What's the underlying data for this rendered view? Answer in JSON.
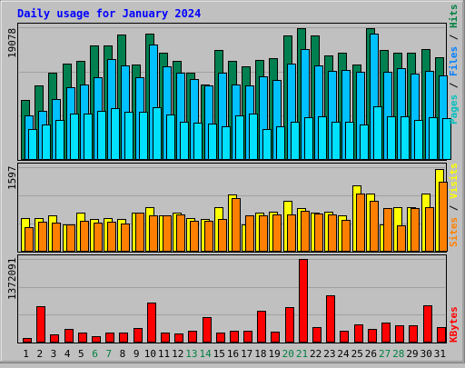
{
  "chart_data": {
    "type": "bar",
    "title": "Daily usage for January 2024",
    "categories": [
      "1",
      "2",
      "3",
      "4",
      "5",
      "6",
      "7",
      "8",
      "9",
      "10",
      "11",
      "12",
      "13",
      "14",
      "15",
      "16",
      "17",
      "18",
      "19",
      "20",
      "21",
      "22",
      "23",
      "24",
      "25",
      "26",
      "27",
      "28",
      "29",
      "30",
      "31"
    ],
    "weekend_days": [
      "6",
      "7",
      "13",
      "14",
      "20",
      "21",
      "27",
      "28"
    ],
    "colors": {
      "title": "#0000ff",
      "background": "#c0c0c0",
      "plot_background": "#c0c0c0",
      "grid": "#a0a0a0",
      "weekday_label": "#000000",
      "weekend_label": "#008040",
      "separator": "#000000"
    },
    "panels": [
      {
        "id": "pages-files-hits",
        "ymax_label": "19078",
        "ylim": [
          0,
          19078
        ],
        "legend": [
          {
            "text": "Pages",
            "color": "#00c0c0"
          },
          {
            "text": " / ",
            "color": "#000000"
          },
          {
            "text": "Files",
            "color": "#0080ff"
          },
          {
            "text": " / ",
            "color": "#000000"
          },
          {
            "text": "Hits",
            "color": "#008040"
          }
        ],
        "series": [
          {
            "name": "Hits",
            "color": "#008050",
            "values": [
              8600,
              10700,
              12600,
              13900,
              14300,
              16400,
              16400,
              18000,
              13700,
              18200,
              15400,
              14300,
              12500,
              10900,
              15800,
              14300,
              13500,
              14400,
              14600,
              17900,
              19000,
              17900,
              15000,
              15400,
              13700,
              19000,
              15800,
              15400,
              15400,
              15900,
              14800
            ]
          },
          {
            "name": "Files",
            "color": "#00c0ff",
            "values": [
              6400,
              7100,
              8800,
              10500,
              10800,
              11900,
              14500,
              13600,
              11900,
              16600,
              13500,
              12500,
              11600,
              10700,
              12500,
              10900,
              10700,
              12000,
              11500,
              13900,
              16000,
              13600,
              12800,
              13000,
              12700,
              18200,
              12700,
              13200,
              12400,
              12800,
              12200
            ]
          },
          {
            "name": "Pages",
            "color": "#00e0ff",
            "values": [
              4400,
              5100,
              5700,
              6600,
              6600,
              7000,
              7500,
              6900,
              6900,
              7600,
              6500,
              5500,
              5400,
              5200,
              4900,
              6400,
              6600,
              4400,
              4800,
              5500,
              6200,
              6300,
              5500,
              5500,
              5100,
              7700,
              6300,
              6300,
              5700,
              6200,
              6000
            ]
          }
        ]
      },
      {
        "id": "sites-visits",
        "ymax_label": "1597",
        "ylim": [
          0,
          1597
        ],
        "legend": [
          {
            "text": "Sites",
            "color": "#ff8000"
          },
          {
            "text": " / ",
            "color": "#000000"
          },
          {
            "text": "Visits",
            "color": "#ffff00"
          }
        ],
        "series": [
          {
            "name": "Visits",
            "color": "#ffff00",
            "values": [
              640,
              640,
              680,
              520,
              740,
              610,
              640,
              610,
              740,
              840,
              680,
              740,
              640,
              620,
              840,
              1080,
              520,
              740,
              750,
              960,
              820,
              740,
              760,
              680,
              1260,
              1100,
              520,
              840,
              840,
              1100,
              1560
            ]
          },
          {
            "name": "Sites",
            "color": "#ff8000",
            "values": [
              470,
              570,
              550,
              510,
              580,
              550,
              560,
              540,
              730,
              690,
              690,
              700,
              580,
              590,
              620,
              1020,
              680,
              690,
              710,
              700,
              780,
              720,
              700,
              600,
              1100,
              960,
              820,
              500,
              820,
              850,
              1320
            ]
          }
        ]
      },
      {
        "id": "kbytes",
        "ymax_label": "1372091",
        "ylim": [
          0,
          1372091
        ],
        "legend": [
          {
            "text": "KBytes",
            "color": "#ff0000"
          }
        ],
        "series": [
          {
            "name": "KBytes",
            "color": "#ff0000",
            "values": [
              80000,
              590000,
              130000,
              230000,
              160000,
              100000,
              160000,
              170000,
              240000,
              650000,
              170000,
              150000,
              200000,
              420000,
              160000,
              190000,
              190000,
              520000,
              180000,
              580000,
              1372091,
              260000,
              780000,
              190000,
              300000,
              230000,
              330000,
              280000,
              280000,
              610000,
              260000
            ]
          }
        ]
      }
    ]
  }
}
